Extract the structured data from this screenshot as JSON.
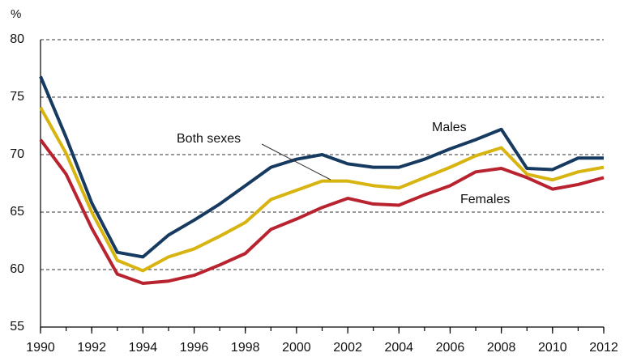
{
  "chart_data": {
    "type": "line",
    "y_unit": "%",
    "x": [
      1990,
      1991,
      1992,
      1993,
      1994,
      1995,
      1996,
      1997,
      1998,
      1999,
      2000,
      2001,
      2002,
      2003,
      2004,
      2005,
      2006,
      2007,
      2008,
      2009,
      2010,
      2011,
      2012
    ],
    "series": [
      {
        "name": "Males",
        "color": "#173a60",
        "values": [
          76.8,
          71.5,
          65.8,
          61.5,
          61.1,
          63.0,
          64.3,
          65.7,
          67.3,
          68.9,
          69.6,
          70.0,
          69.2,
          68.9,
          68.9,
          69.6,
          70.5,
          71.3,
          72.2,
          68.8,
          68.7,
          69.7,
          69.7
        ]
      },
      {
        "name": "Both sexes",
        "color": "#d8b410",
        "values": [
          74.1,
          70.1,
          65.0,
          60.8,
          59.9,
          61.1,
          61.8,
          62.9,
          64.1,
          66.1,
          66.9,
          67.7,
          67.7,
          67.3,
          67.1,
          68.0,
          68.9,
          69.9,
          70.6,
          68.3,
          67.8,
          68.5,
          68.9
        ]
      },
      {
        "name": "Females",
        "color": "#b8232f",
        "values": [
          71.3,
          68.3,
          63.6,
          59.6,
          58.8,
          59.0,
          59.5,
          60.4,
          61.4,
          63.5,
          64.4,
          65.4,
          66.2,
          65.7,
          65.6,
          66.5,
          67.3,
          68.5,
          68.8,
          68.0,
          67.0,
          67.4,
          68.0
        ]
      }
    ],
    "xlim": [
      1990,
      2012
    ],
    "xticks": [
      1990,
      1992,
      1994,
      1996,
      1998,
      2000,
      2002,
      2004,
      2006,
      2008,
      2010,
      2012
    ],
    "ylim": [
      55,
      80
    ],
    "yticks": [
      55,
      60,
      65,
      70,
      75,
      80
    ],
    "grid": true
  }
}
